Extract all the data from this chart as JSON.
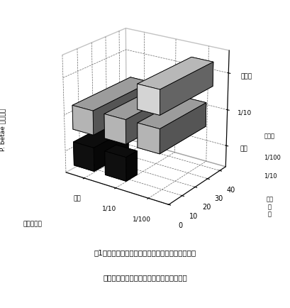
{
  "ylabel_jp": "P. betae の寄生度",
  "xlabel_jp": "遗走子濃度",
  "zlabel_jp": "細菌\n濃\n度",
  "x_labels": [
    "原液",
    "1/10",
    "1/100"
  ],
  "z_labels": [
    "原液",
    "1/10",
    "無処理"
  ],
  "values": [
    [
      25,
      42,
      0
    ],
    [
      8,
      30,
      0
    ],
    [
      0,
      35,
      40
    ]
  ],
  "bar_facecolors": [
    "#111111",
    "#cccccc",
    "#f0f0f0"
  ],
  "ylim": [
    0,
    45
  ],
  "yticks": [
    0,
    10,
    20,
    30,
    40
  ],
  "elev": 22,
  "azim": -55,
  "caption_line1": "図1　石英砂で核培したてんさいのそう根病の発病",
  "caption_line2": "に及ぼす根圈細菌および遗走子濃度の影響"
}
